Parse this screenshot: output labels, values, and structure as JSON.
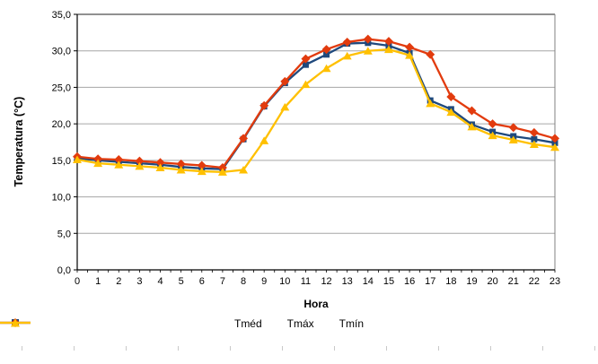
{
  "colors": {
    "background": "#FFFFFF",
    "gridline": "#A6A6A6",
    "axis": "#000000",
    "plot_border_right": "#808080",
    "plot_border_top": "#4D4D4D",
    "ruler_mark": "#C9C9C9"
  },
  "chart_data": {
    "type": "line",
    "title": "",
    "xlabel": "Hora",
    "ylabel": "Temperatura (°C)",
    "x": [
      0,
      1,
      2,
      3,
      4,
      5,
      6,
      7,
      8,
      9,
      10,
      11,
      12,
      13,
      14,
      15,
      16,
      17,
      18,
      19,
      20,
      21,
      22,
      23
    ],
    "xtick_labels": [
      "0",
      "1",
      "2",
      "3",
      "4",
      "5",
      "6",
      "7",
      "8",
      "9",
      "10",
      "11",
      "12",
      "13",
      "14",
      "15",
      "16",
      "17",
      "18",
      "19",
      "20",
      "21",
      "22",
      "23"
    ],
    "ylim": [
      0,
      35
    ],
    "yticks": [
      0,
      5,
      10,
      15,
      20,
      25,
      30,
      35
    ],
    "ytick_labels": [
      "0,0",
      "5,0",
      "10,0",
      "15,0",
      "20,0",
      "25,0",
      "30,0",
      "35,0"
    ],
    "grid": "horizontal",
    "legend_position": "bottom",
    "series": [
      {
        "id": "tmed",
        "name": "Tméd",
        "marker": "square",
        "color": "#1F497D",
        "values": [
          15.3,
          15.0,
          14.8,
          14.6,
          14.4,
          14.1,
          13.9,
          13.8,
          17.9,
          22.4,
          25.6,
          28.1,
          29.5,
          31.0,
          31.1,
          30.7,
          29.7,
          23.2,
          22.0,
          19.9,
          18.9,
          18.3,
          17.9,
          17.4
        ]
      },
      {
        "id": "tmax",
        "name": "Tmáx",
        "marker": "diamond",
        "color": "#E23B0E",
        "values": [
          15.5,
          15.2,
          15.1,
          14.9,
          14.7,
          14.5,
          14.3,
          14.0,
          18.0,
          22.5,
          25.8,
          28.9,
          30.2,
          31.2,
          31.6,
          31.3,
          30.5,
          29.5,
          23.7,
          21.8,
          20.0,
          19.5,
          18.8,
          18.0
        ]
      },
      {
        "id": "tmin",
        "name": "Tmín",
        "marker": "triangle",
        "color": "#FFC000",
        "values": [
          15.1,
          14.6,
          14.4,
          14.2,
          14.0,
          13.7,
          13.5,
          13.4,
          13.7,
          17.7,
          22.3,
          25.4,
          27.6,
          29.3,
          30.0,
          30.2,
          29.4,
          22.8,
          21.6,
          19.6,
          18.4,
          17.8,
          17.2,
          16.8
        ]
      }
    ]
  }
}
